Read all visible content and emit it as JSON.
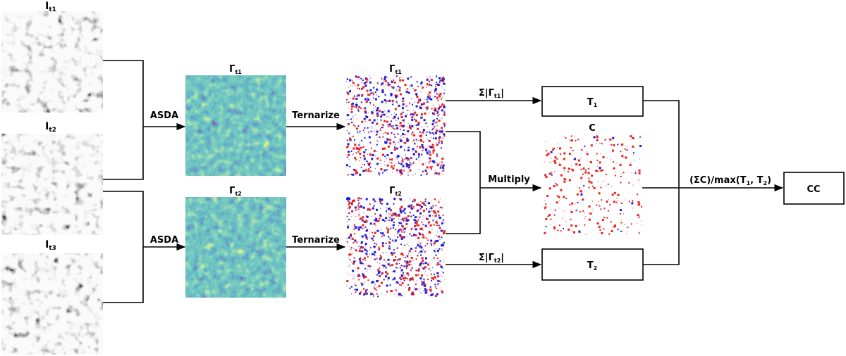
{
  "inputs": [
    {
      "base": "I",
      "sub": "t1"
    },
    {
      "base": "I",
      "sub": "t2"
    },
    {
      "base": "I",
      "sub": "t3"
    }
  ],
  "gamma_maps": [
    {
      "base": "Γ",
      "sub": "t1"
    },
    {
      "base": "Γ",
      "sub": "t2"
    }
  ],
  "ternary_maps": [
    {
      "base": "Γ",
      "sub": "t1"
    },
    {
      "base": "Γ",
      "sub": "t2"
    }
  ],
  "product_map": {
    "label": "C"
  },
  "steps": {
    "asda_top": "ASDA",
    "asda_bottom": "ASDA",
    "ternarize_top": "Ternarize",
    "ternarize_bottom": "Ternarize",
    "multiply": "Multiply"
  },
  "sum_labels": [
    {
      "prefix": "Σ|Γ",
      "sub": "t1",
      "suffix": "|"
    },
    {
      "prefix": "Σ|Γ",
      "sub": "t2",
      "suffix": "|"
    }
  ],
  "boxes": {
    "t1": {
      "base": "T",
      "sub": "1"
    },
    "t2": {
      "base": "T",
      "sub": "2"
    },
    "cc": "CC"
  },
  "final": {
    "before_t1": "(ΣC)/max(T",
    "t1_sub": "1",
    "middle": ", T",
    "t2_sub": "2",
    "after": ")"
  },
  "colors": {
    "line": "#000000",
    "ternary_positive": "#e8221f",
    "ternary_negative": "#1c1ce0",
    "viridis_dark": "#2b1a5a",
    "viridis_mid": "#218f8d",
    "viridis_bright": "#d8e219"
  }
}
